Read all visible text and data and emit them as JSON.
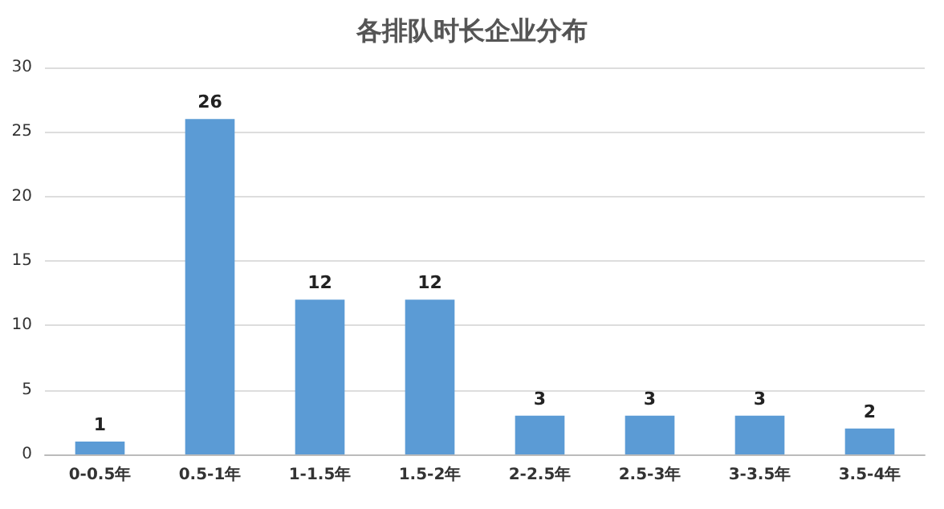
{
  "chart_data": {
    "type": "bar",
    "title": "各排队时长企业分布",
    "categories": [
      "0-0.5年",
      "0.5-1年",
      "1-1.5年",
      "1.5-2年",
      "2-2.5年",
      "2.5-3年",
      "3-3.5年",
      "3.5-4年"
    ],
    "values": [
      1,
      26,
      12,
      12,
      3,
      3,
      3,
      2
    ],
    "color": "#5b9bd5",
    "ylim": [
      0,
      30
    ],
    "yticks": [
      0,
      5,
      10,
      15,
      20,
      25,
      30
    ],
    "grid": "y",
    "data_labels": true
  }
}
